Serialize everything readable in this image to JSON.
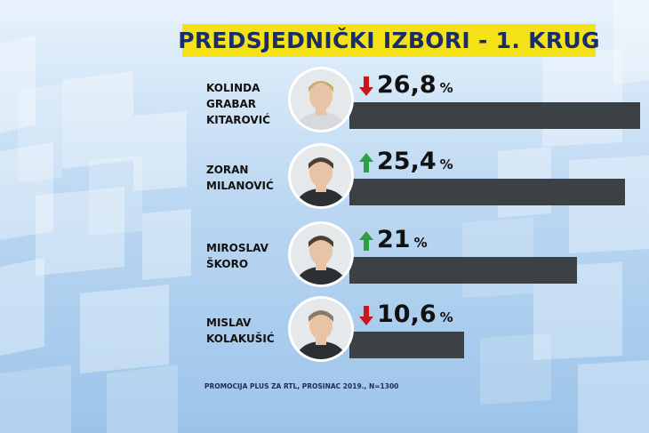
{
  "title": "PREDSJEDNIČKI IZBORI - 1. KRUG",
  "source": "PROMOCIJA PLUS ZA RTL, PROSINAC 2019., N=1300",
  "colors": {
    "title_bg": "#f4e216",
    "title_text": "#1a2d6b",
    "bar": "#3b4145",
    "arrow_up": "#2ea043",
    "arrow_down": "#c91818"
  },
  "chart_data": {
    "type": "bar",
    "orientation": "horizontal",
    "title": "PREDSJEDNIČKI IZBORI - 1. KRUG",
    "unit": "%",
    "categories": [
      "KOLINDA\nGRABAR\nKITAROVIĆ",
      "ZORAN\nMILANOVIĆ",
      "MIROSLAV\nŠKORO",
      "MISLAV\nKOLAKUŠIĆ"
    ],
    "values": [
      26.8,
      25.4,
      21,
      10.6
    ],
    "value_labels": [
      "26,8",
      "25,4",
      "21",
      "10,6"
    ],
    "trend": [
      "down",
      "up",
      "up",
      "down"
    ],
    "icons": [
      "portrait-icon",
      "portrait-icon",
      "portrait-icon",
      "portrait-icon"
    ]
  }
}
